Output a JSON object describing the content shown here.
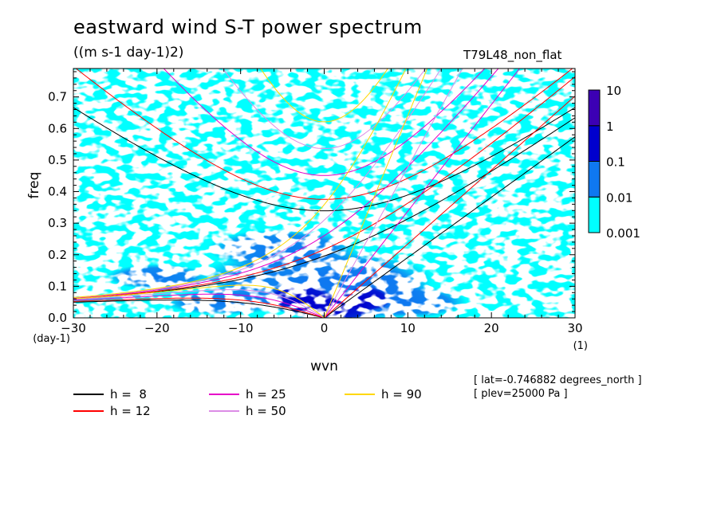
{
  "header": {
    "title": "eastward wind S-T power spectrum",
    "units": "((m s-1 day-1)2)",
    "run_label": "T79L48_non_flat"
  },
  "footer": {
    "lat": "[ lat=-0.746882 degrees_north ]",
    "plev": "[ plev=25000 Pa ]"
  },
  "chart_data": {
    "type": "heatmap",
    "title": "eastward wind S-T power spectrum",
    "subtitle": "((m s-1 day-1)2)",
    "xlabel": "wvn",
    "ylabel": "freq",
    "x_unit_label": "(1)",
    "y_unit_label": "(day-1)",
    "xlim": [
      -30,
      30
    ],
    "ylim": [
      0,
      0.79
    ],
    "x_ticks": [
      -30,
      -20,
      -10,
      0,
      10,
      20,
      30
    ],
    "y_ticks": [
      0.0,
      0.1,
      0.2,
      0.3,
      0.4,
      0.5,
      0.6,
      0.7
    ],
    "colorbar": {
      "levels": [
        "0.001",
        "0.01",
        "0.1",
        "1",
        "10"
      ],
      "colors": [
        "#00ffff",
        "#0f78f0",
        "#0000cd",
        "#0a00a0",
        "#3c00b4"
      ]
    },
    "dispersion_curves": [
      {
        "name": "h =  8",
        "h": 8,
        "color": "#000000"
      },
      {
        "name": "h = 12",
        "h": 12,
        "color": "#ff0000"
      },
      {
        "name": "h = 25",
        "h": 25,
        "color": "#e600c8"
      },
      {
        "name": "h = 50",
        "h": 50,
        "color": "#dc8ce6"
      },
      {
        "name": "h = 90",
        "h": 90,
        "color": "#ffd700"
      }
    ]
  }
}
